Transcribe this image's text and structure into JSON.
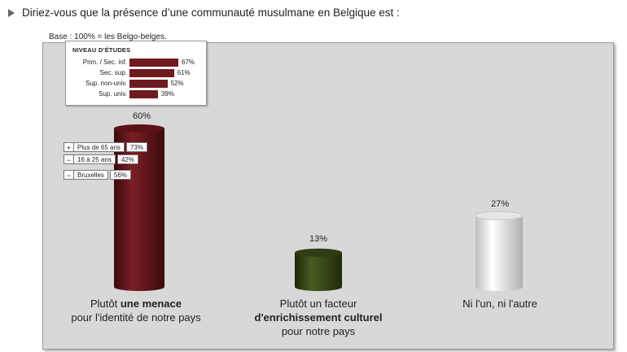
{
  "question": "Diriez-vous que la présence d’une communauté musulmane en Belgique est :",
  "base": "Base : 100% = les Belgo-belges.",
  "education": {
    "title": "NIVEAU D’ÉTUDES",
    "rows": [
      {
        "label": "Prim. / Sec. inf.",
        "value": 67,
        "text": "67%"
      },
      {
        "label": "Sec. sup.",
        "value": 61,
        "text": "61%"
      },
      {
        "label": "Sup. non-univ.",
        "value": 52,
        "text": "52%"
      },
      {
        "label": "Sup. univ.",
        "value": 39,
        "text": "39%"
      }
    ]
  },
  "demographics": [
    {
      "sign": "+",
      "label": "Plus de 65 ans",
      "text": "73%"
    },
    {
      "sign": "−",
      "label": "16 à 25 ans",
      "text": "42%"
    },
    {
      "sign": "−",
      "label": "Bruxelles",
      "text": "56%"
    }
  ],
  "categories": [
    {
      "line1_pre": "Plutôt ",
      "line1_bold": "une menace",
      "line2": "pour l'identité de notre pays",
      "line3": ""
    },
    {
      "line1_pre": "Plutôt un facteur",
      "line1_bold": "",
      "line2_bold": "d'enrichissement culturel",
      "line3": "pour notre pays"
    },
    {
      "line1_pre": "Ni l'un, ni l'autre",
      "line1_bold": "",
      "line2": "",
      "line3": ""
    }
  ],
  "colors": {
    "menace": "#5c1216",
    "enrichissement": "#2f3d14",
    "ni": "#e6e6e6",
    "edu_bar": "#6e1a1f",
    "panel": "#d8d8d8"
  },
  "chart_data": {
    "type": "bar",
    "categories": [
      "Plutôt une menace pour l'identité de notre pays",
      "Plutôt un facteur d'enrichissement culturel pour notre pays",
      "Ni l'un, ni l'autre"
    ],
    "values": [
      60,
      13,
      27
    ],
    "value_labels": [
      "60%",
      "13%",
      "27%"
    ],
    "ylim": [
      0,
      60
    ],
    "grid": false,
    "inset_education": {
      "categories": [
        "Prim. / Sec. inf.",
        "Sec. sup.",
        "Sup. non-univ.",
        "Sup. univ."
      ],
      "values": [
        67,
        61,
        52,
        39
      ]
    },
    "annotations_menace": [
      {
        "group": "Plus de 65 ans",
        "value": 73
      },
      {
        "group": "16 à 25 ans",
        "value": 42
      },
      {
        "group": "Bruxelles",
        "value": 56
      }
    ]
  }
}
